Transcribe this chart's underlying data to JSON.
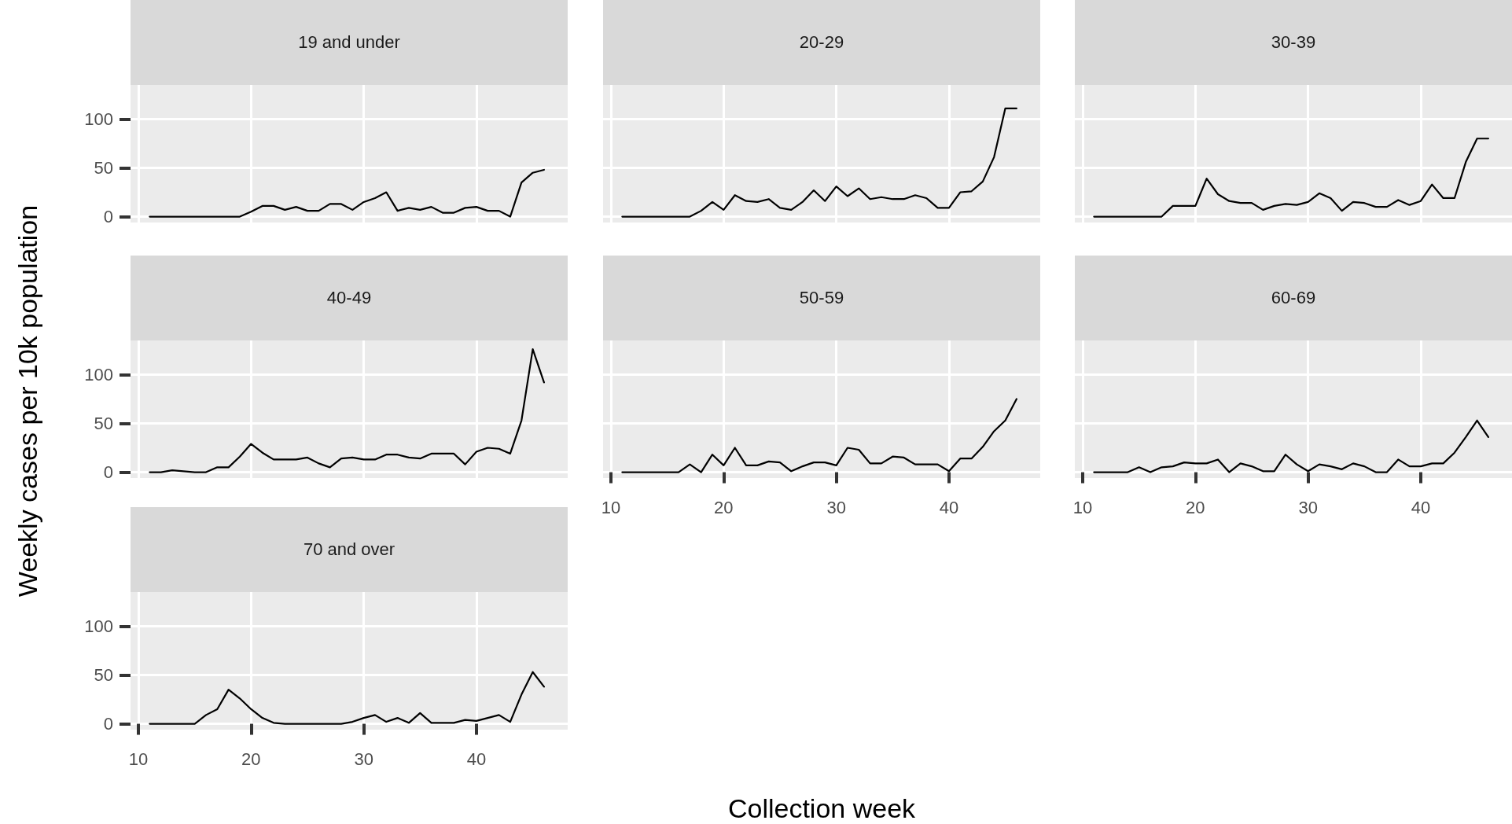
{
  "chart_data": [
    {
      "type": "line",
      "title": "19 and under",
      "x": [
        11,
        12,
        13,
        14,
        15,
        16,
        17,
        18,
        19,
        20,
        21,
        22,
        23,
        24,
        25,
        26,
        27,
        28,
        29,
        30,
        31,
        32,
        33,
        34,
        35,
        36,
        37,
        38,
        39,
        40,
        41,
        42,
        43,
        44,
        45,
        46
      ],
      "series": [
        {
          "color": "#000000",
          "values": [
            0,
            0,
            0,
            0,
            0,
            0,
            0,
            0,
            0,
            5,
            11,
            11,
            7,
            10,
            6,
            6,
            13,
            13,
            7,
            15,
            19,
            25,
            6,
            9,
            7,
            10,
            4,
            4,
            9,
            10,
            6,
            6,
            0,
            35,
            45,
            48
          ]
        }
      ],
      "xlim": [
        9.3,
        48.1
      ],
      "xticks": [
        10,
        20,
        30,
        40
      ],
      "ylim": [
        -6,
        135
      ],
      "yticks": [
        0,
        50,
        100
      ],
      "grid": true,
      "marker": "none",
      "tick_labels": "y"
    },
    {
      "type": "line",
      "title": "20-29",
      "x": [
        11,
        12,
        13,
        14,
        15,
        16,
        17,
        18,
        19,
        20,
        21,
        22,
        23,
        24,
        25,
        26,
        27,
        28,
        29,
        30,
        31,
        32,
        33,
        34,
        35,
        36,
        37,
        38,
        39,
        40,
        41,
        42,
        43,
        44,
        45,
        46
      ],
      "series": [
        {
          "color": "#000000",
          "values": [
            0,
            0,
            0,
            0,
            0,
            0,
            0,
            6,
            15,
            7,
            22,
            16,
            15,
            18,
            9,
            7,
            15,
            27,
            16,
            31,
            21,
            29,
            18,
            20,
            18,
            18,
            22,
            19,
            9,
            9,
            25,
            26,
            36,
            61,
            111,
            111
          ]
        }
      ],
      "xlim": [
        9.3,
        48.1
      ],
      "xticks": [
        10,
        20,
        30,
        40
      ],
      "ylim": [
        -6,
        135
      ],
      "yticks": [
        0,
        50,
        100
      ],
      "grid": true,
      "marker": "none",
      "tick_labels": false
    },
    {
      "type": "line",
      "title": "30-39",
      "x": [
        11,
        12,
        13,
        14,
        15,
        16,
        17,
        18,
        19,
        20,
        21,
        22,
        23,
        24,
        25,
        26,
        27,
        28,
        29,
        30,
        31,
        32,
        33,
        34,
        35,
        36,
        37,
        38,
        39,
        40,
        41,
        42,
        43,
        44,
        45,
        46
      ],
      "series": [
        {
          "color": "#000000",
          "values": [
            0,
            0,
            0,
            0,
            0,
            0,
            0,
            11,
            11,
            11,
            39,
            23,
            16,
            14,
            14,
            7,
            11,
            13,
            12,
            15,
            24,
            19,
            6,
            15,
            14,
            10,
            10,
            17,
            12,
            16,
            33,
            19,
            19,
            56,
            80,
            80
          ]
        }
      ],
      "xlim": [
        9.3,
        48.1
      ],
      "xticks": [
        10,
        20,
        30,
        40
      ],
      "ylim": [
        -6,
        135
      ],
      "yticks": [
        0,
        50,
        100
      ],
      "grid": true,
      "marker": "none",
      "tick_labels": false
    },
    {
      "type": "line",
      "title": "40-49",
      "ylabel": "Weekly cases per 10k population",
      "x": [
        11,
        12,
        13,
        14,
        15,
        16,
        17,
        18,
        19,
        20,
        21,
        22,
        23,
        24,
        25,
        26,
        27,
        28,
        29,
        30,
        31,
        32,
        33,
        34,
        35,
        36,
        37,
        38,
        39,
        40,
        41,
        42,
        43,
        44,
        45,
        46
      ],
      "series": [
        {
          "color": "#000000",
          "values": [
            0,
            0,
            2,
            1,
            0,
            0,
            5,
            5,
            16,
            29,
            20,
            13,
            13,
            13,
            15,
            9,
            5,
            14,
            15,
            13,
            13,
            18,
            18,
            15,
            14,
            19,
            19,
            19,
            8,
            21,
            25,
            24,
            19,
            53,
            126,
            92
          ]
        }
      ],
      "xlim": [
        9.3,
        48.1
      ],
      "xticks": [
        10,
        20,
        30,
        40
      ],
      "ylim": [
        -6,
        135
      ],
      "yticks": [
        0,
        50,
        100
      ],
      "grid": true,
      "marker": "none",
      "tick_labels": "y"
    },
    {
      "type": "line",
      "title": "50-59",
      "xlabel": "Collection week",
      "x": [
        11,
        12,
        13,
        14,
        15,
        16,
        17,
        18,
        19,
        20,
        21,
        22,
        23,
        24,
        25,
        26,
        27,
        28,
        29,
        30,
        31,
        32,
        33,
        34,
        35,
        36,
        37,
        38,
        39,
        40,
        41,
        42,
        43,
        44,
        45,
        46
      ],
      "series": [
        {
          "color": "#000000",
          "values": [
            0,
            0,
            0,
            0,
            0,
            0,
            8,
            0,
            18,
            7,
            25,
            7,
            7,
            11,
            10,
            1,
            6,
            10,
            10,
            7,
            25,
            23,
            9,
            9,
            16,
            15,
            8,
            8,
            8,
            1,
            14,
            14,
            26,
            42,
            53,
            75
          ]
        }
      ],
      "xlim": [
        9.3,
        48.1
      ],
      "xticks": [
        10,
        20,
        30,
        40
      ],
      "ylim": [
        -6,
        135
      ],
      "yticks": [
        0,
        50,
        100
      ],
      "grid": true,
      "marker": "none",
      "tick_labels": "x"
    },
    {
      "type": "line",
      "title": "60-69",
      "x": [
        11,
        12,
        13,
        14,
        15,
        16,
        17,
        18,
        19,
        20,
        21,
        22,
        23,
        24,
        25,
        26,
        27,
        28,
        29,
        30,
        31,
        32,
        33,
        34,
        35,
        36,
        37,
        38,
        39,
        40,
        41,
        42,
        43,
        44,
        45,
        46
      ],
      "series": [
        {
          "color": "#000000",
          "values": [
            0,
            0,
            0,
            0,
            5,
            0,
            5,
            6,
            10,
            9,
            9,
            13,
            0,
            9,
            6,
            1,
            1,
            18,
            8,
            1,
            8,
            6,
            3,
            9,
            6,
            0,
            0,
            13,
            6,
            6,
            9,
            9,
            20,
            36,
            53,
            36
          ]
        }
      ],
      "xlim": [
        9.3,
        48.1
      ],
      "xticks": [
        10,
        20,
        30,
        40
      ],
      "ylim": [
        -6,
        135
      ],
      "yticks": [
        0,
        50,
        100
      ],
      "grid": true,
      "marker": "none",
      "tick_labels": "x"
    },
    {
      "type": "line",
      "title": "70 and over",
      "x": [
        11,
        12,
        13,
        14,
        15,
        16,
        17,
        18,
        19,
        20,
        21,
        22,
        23,
        24,
        25,
        26,
        27,
        28,
        29,
        30,
        31,
        32,
        33,
        34,
        35,
        36,
        37,
        38,
        39,
        40,
        41,
        42,
        43,
        44,
        45,
        46
      ],
      "series": [
        {
          "color": "#000000",
          "values": [
            0,
            0,
            0,
            0,
            0,
            9,
            15,
            35,
            26,
            15,
            6,
            1,
            0,
            0,
            0,
            0,
            0,
            0,
            2,
            6,
            9,
            2,
            6,
            1,
            11,
            1,
            1,
            1,
            4,
            3,
            6,
            9,
            2,
            30,
            53,
            38
          ]
        }
      ],
      "xlim": [
        9.3,
        48.1
      ],
      "xticks": [
        10,
        20,
        30,
        40
      ],
      "ylim": [
        -6,
        135
      ],
      "yticks": [
        0,
        50,
        100
      ],
      "grid": true,
      "marker": "none"
    }
  ]
}
